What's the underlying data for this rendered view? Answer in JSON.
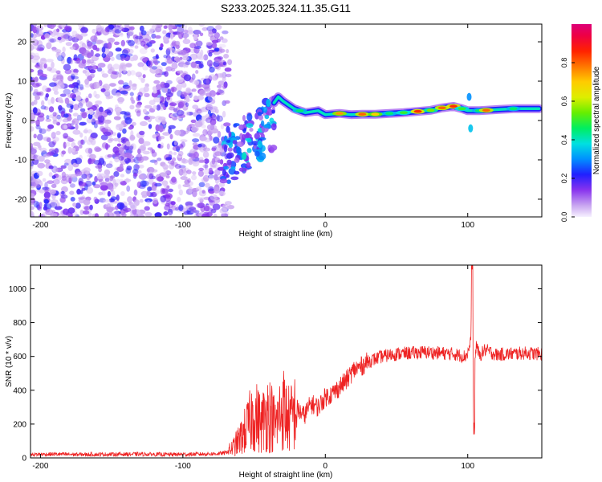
{
  "figure_title": "S233.2025.324.11.35.G11",
  "chart_data": [
    {
      "type": "heatmap",
      "xlabel": "Height of straight line (km)",
      "ylabel": "Frequency (Hz)",
      "xlim": [
        -207,
        152
      ],
      "ylim": [
        -24.5,
        24.5
      ],
      "x_ticks": [
        -200,
        -100,
        0,
        100
      ],
      "y_ticks": [
        -20,
        -10,
        0,
        10,
        20
      ],
      "colorbar": {
        "label": "Normalized spectral amplitude",
        "range": [
          0,
          1
        ],
        "ticks": [
          0.0,
          0.2,
          0.4,
          0.6,
          0.8
        ],
        "tick_labels": [
          "0.0",
          "0.2",
          "0.4",
          "0.6",
          "0.8"
        ]
      },
      "ridge": [
        {
          "x": -36,
          "y": 4.5,
          "a": 0.25
        },
        {
          "x": -33,
          "y": 6.0,
          "a": 0.2
        },
        {
          "x": -30,
          "y": 5.0,
          "a": 0.25
        },
        {
          "x": -26,
          "y": 4.0,
          "a": 0.3
        },
        {
          "x": -22,
          "y": 3.0,
          "a": 0.3
        },
        {
          "x": -18,
          "y": 2.5,
          "a": 0.45
        },
        {
          "x": -14,
          "y": 2.0,
          "a": 0.3
        },
        {
          "x": -10,
          "y": 2.2,
          "a": 0.35
        },
        {
          "x": -5,
          "y": 2.5,
          "a": 0.4
        },
        {
          "x": 0,
          "y": 1.5,
          "a": 0.35
        },
        {
          "x": 10,
          "y": 1.8,
          "a": 0.75
        },
        {
          "x": 18,
          "y": 1.5,
          "a": 0.4
        },
        {
          "x": 26,
          "y": 1.6,
          "a": 0.8
        },
        {
          "x": 35,
          "y": 1.6,
          "a": 0.7
        },
        {
          "x": 45,
          "y": 1.8,
          "a": 0.45
        },
        {
          "x": 55,
          "y": 2.0,
          "a": 0.5
        },
        {
          "x": 65,
          "y": 2.3,
          "a": 0.85
        },
        {
          "x": 74,
          "y": 2.6,
          "a": 0.55
        },
        {
          "x": 82,
          "y": 3.2,
          "a": 0.8
        },
        {
          "x": 90,
          "y": 3.6,
          "a": 0.85
        },
        {
          "x": 96,
          "y": 3.0,
          "a": 0.5
        },
        {
          "x": 100,
          "y": 2.5,
          "a": 0.35
        },
        {
          "x": 108,
          "y": 2.5,
          "a": 0.45
        },
        {
          "x": 113,
          "y": 2.6,
          "a": 0.8
        },
        {
          "x": 122,
          "y": 2.8,
          "a": 0.4
        },
        {
          "x": 132,
          "y": 3.0,
          "a": 0.45
        },
        {
          "x": 142,
          "y": 3.0,
          "a": 0.35
        },
        {
          "x": 150,
          "y": 3.0,
          "a": 0.35
        }
      ]
    },
    {
      "type": "line",
      "xlabel": "Height of straight line (km)",
      "ylabel": "SNR (10 * v/v)",
      "xlim": [
        -207,
        152
      ],
      "ylim": [
        0,
        1140
      ],
      "x_ticks": [
        -200,
        -100,
        0,
        100
      ],
      "y_ticks": [
        0,
        200,
        400,
        600,
        800,
        1000
      ],
      "color": "#ee2222",
      "series": [
        {
          "name": "SNR",
          "x": [
            -207,
            -190,
            -170,
            -150,
            -130,
            -110,
            -90,
            -75,
            -70,
            -65,
            -60,
            -55,
            -50,
            -45,
            -40,
            -35,
            -30,
            -25,
            -20,
            -15,
            -10,
            -5,
            0,
            5,
            10,
            15,
            20,
            25,
            30,
            40,
            50,
            60,
            70,
            80,
            90,
            98,
            100,
            102,
            103,
            104,
            105,
            106,
            108,
            112,
            120,
            130,
            140,
            152
          ],
          "y": [
            20,
            22,
            20,
            21,
            22,
            20,
            22,
            25,
            30,
            60,
            110,
            180,
            260,
            200,
            280,
            190,
            300,
            220,
            290,
            250,
            320,
            300,
            360,
            380,
            420,
            460,
            520,
            540,
            570,
            600,
            615,
            620,
            625,
            620,
            615,
            600,
            620,
            680,
            960,
            300,
            560,
            680,
            600,
            640,
            610,
            615,
            620,
            615
          ]
        }
      ]
    }
  ]
}
